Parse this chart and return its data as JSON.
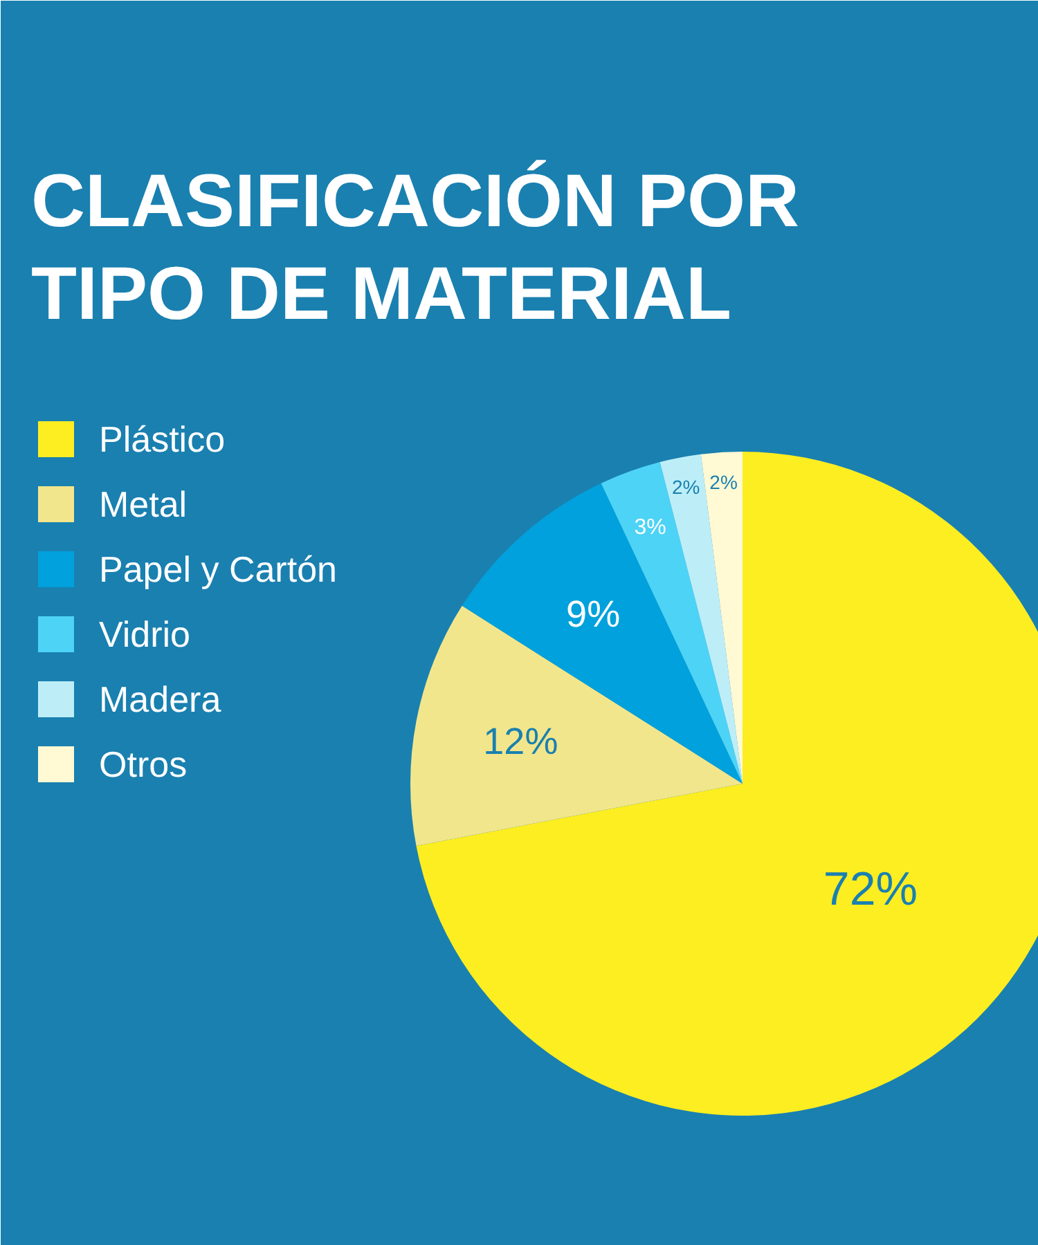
{
  "chart_data": {
    "type": "pie",
    "title": "CLASIFICACIÓN POR TIPO DE MATERIAL",
    "categories": [
      "Plástico",
      "Metal",
      "Papel y Cartón",
      "Vidrio",
      "Madera",
      "Otros"
    ],
    "values": [
      72,
      12,
      9,
      3,
      2,
      2
    ],
    "colors": [
      "#fcee21",
      "#f2e68c",
      "#00a1dc",
      "#4dd3f6",
      "#bdeef8",
      "#fff9d4"
    ],
    "value_labels": [
      "72%",
      "12%",
      "9%",
      "3%",
      "2%",
      "2%"
    ],
    "legend": "left"
  }
}
